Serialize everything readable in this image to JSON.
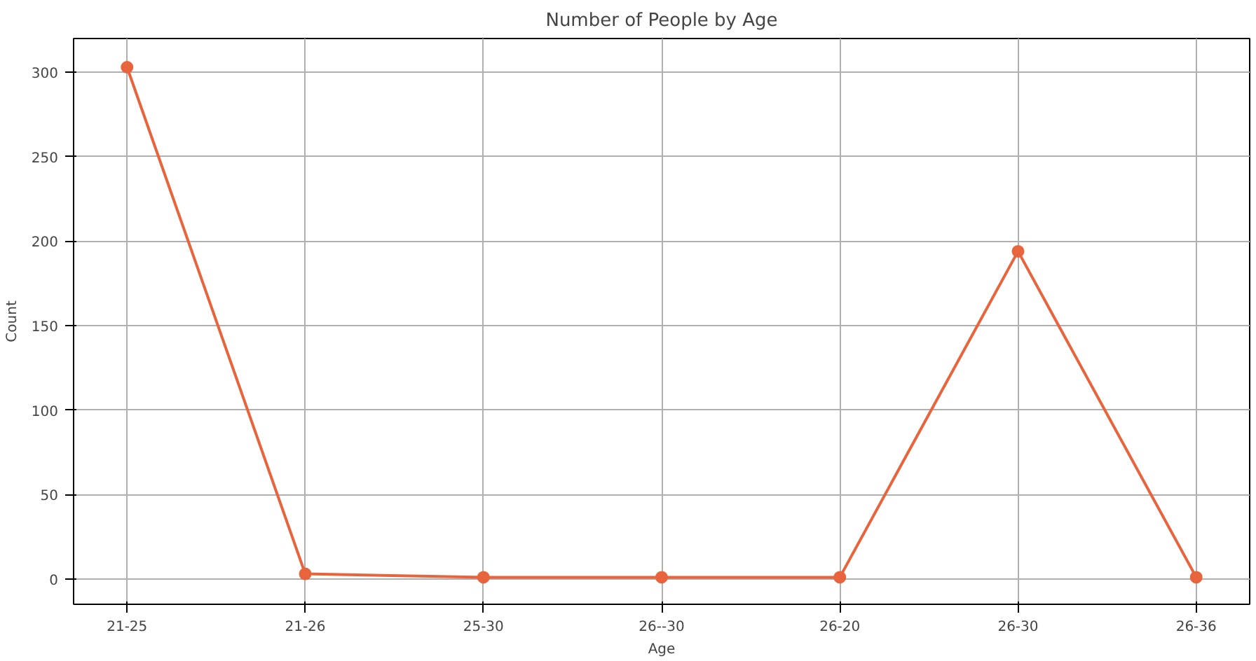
{
  "chart_data": {
    "type": "line",
    "title": "Number of People by Age",
    "xlabel": "Age",
    "ylabel": "Count",
    "categories": [
      "21-25",
      "21-26",
      "25-30",
      "26--30",
      "26-20",
      "26-30",
      "26-36"
    ],
    "series": [
      {
        "color": "#e8643c",
        "values": [
          303,
          3,
          1,
          1,
          1,
          194,
          1
        ]
      }
    ],
    "ylim": [
      -15,
      320
    ],
    "yticks": [
      0,
      50,
      100,
      150,
      200,
      250,
      300
    ],
    "grid": true,
    "marker": "circle",
    "line_style": "solid"
  }
}
